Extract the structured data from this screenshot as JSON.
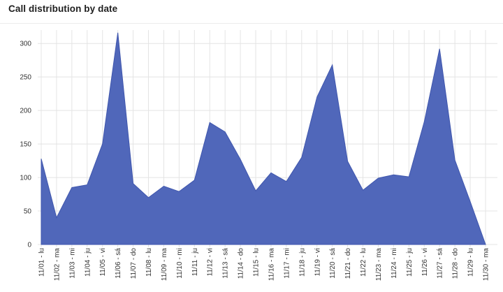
{
  "header": {
    "title": "Call distribution by date"
  },
  "chart_data": {
    "type": "area",
    "title": "Call distribution by date",
    "xlabel": "",
    "ylabel": "",
    "ylim": [
      0,
      320
    ],
    "yticks": [
      0,
      50,
      100,
      150,
      200,
      250,
      300
    ],
    "grid": true,
    "legend": "none",
    "color": "#4a62b8",
    "categories": [
      "11/01 - lu",
      "11/02 - ma",
      "11/03 - mi",
      "11/04 - ju",
      "11/05 - vi",
      "11/06 - sá",
      "11/07 - do",
      "11/08 - lu",
      "11/09 - ma",
      "11/10 - mi",
      "11/11 - ju",
      "11/12 - vi",
      "11/13 - sá",
      "11/14 - do",
      "11/15 - lu",
      "11/16 - ma",
      "11/17 - mi",
      "11/18 - ju",
      "11/19 - vi",
      "11/20 - sá",
      "11/21 - do",
      "11/22 - lu",
      "11/23 - ma",
      "11/24 - mi",
      "11/25 - ju",
      "11/26 - vi",
      "11/27 - sá",
      "11/28 - do",
      "11/29 - lu",
      "11/30 - ma"
    ],
    "series": [
      {
        "values": [
          128,
          40,
          85,
          89,
          150,
          316,
          91,
          70,
          87,
          79,
          96,
          182,
          168,
          127,
          80,
          107,
          94,
          130,
          220,
          268,
          124,
          81,
          99,
          104,
          101,
          183,
          292,
          126,
          64,
          0
        ]
      }
    ]
  }
}
